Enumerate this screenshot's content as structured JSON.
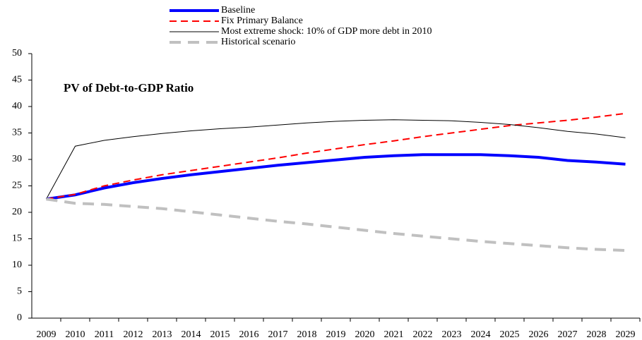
{
  "chart_data": {
    "type": "line",
    "title": "PV of Debt-to-GDP Ratio",
    "categories": [
      "2009",
      "2010",
      "2011",
      "2012",
      "2013",
      "2014",
      "2015",
      "2016",
      "2017",
      "2018",
      "2019",
      "2020",
      "2021",
      "2022",
      "2023",
      "2024",
      "2025",
      "2026",
      "2027",
      "2028",
      "2029"
    ],
    "series": [
      {
        "name": "Baseline",
        "color": "#0000ff",
        "values": [
          22.5,
          23.3,
          24.6,
          25.6,
          26.4,
          27.1,
          27.7,
          28.3,
          28.9,
          29.4,
          29.9,
          30.4,
          30.7,
          30.9,
          30.9,
          30.9,
          30.7,
          30.4,
          29.8,
          29.5,
          29.1
        ]
      },
      {
        "name": "Fix Primary Balance",
        "color": "#ff0000",
        "values": [
          22.5,
          23.4,
          25.0,
          26.1,
          27.1,
          27.9,
          28.7,
          29.5,
          30.3,
          31.2,
          32.0,
          32.8,
          33.5,
          34.3,
          35.0,
          35.7,
          36.4,
          36.9,
          37.4,
          38.0,
          38.7
        ]
      },
      {
        "name": "Most extreme shock: 10% of GDP more debt in 2010",
        "color": "#000000",
        "values": [
          22.5,
          32.5,
          33.6,
          34.3,
          34.9,
          35.4,
          35.8,
          36.1,
          36.5,
          36.9,
          37.2,
          37.4,
          37.5,
          37.4,
          37.3,
          37.0,
          36.6,
          36.0,
          35.3,
          34.8,
          34.1
        ]
      },
      {
        "name": "Historical scenario",
        "color": "#c0c0c0",
        "values": [
          22.5,
          21.7,
          21.5,
          21.1,
          20.7,
          20.1,
          19.5,
          18.9,
          18.3,
          17.8,
          17.2,
          16.6,
          16.0,
          15.5,
          15.0,
          14.5,
          14.1,
          13.7,
          13.3,
          13.0,
          12.8
        ]
      }
    ],
    "ylim": [
      0,
      50
    ],
    "yticks": [
      0,
      5,
      10,
      15,
      20,
      25,
      30,
      35,
      40,
      45,
      50
    ]
  }
}
